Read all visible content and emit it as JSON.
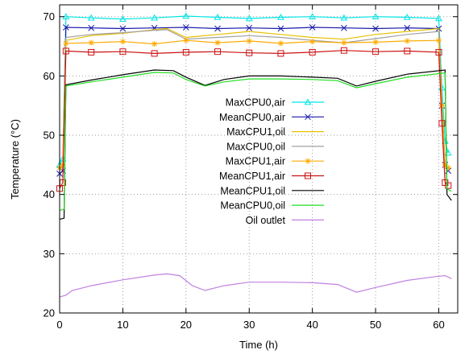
{
  "chart_data": {
    "type": "line",
    "title": "",
    "xlabel": "Time (h)",
    "ylabel": "Temperature (°C)",
    "xlim": [
      0,
      63
    ],
    "ylim": [
      20,
      72
    ],
    "xticks": [
      0,
      10,
      20,
      30,
      40,
      50,
      60
    ],
    "yticks": [
      20,
      30,
      40,
      50,
      60,
      70
    ],
    "grid": true,
    "legend_position": "center",
    "series": [
      {
        "name": "MaxCPU0,air",
        "color": "#00e5e5",
        "marker": "triangle",
        "points": [
          [
            0,
            45
          ],
          [
            0.5,
            46
          ],
          [
            1,
            70
          ],
          [
            5,
            69.8
          ],
          [
            10,
            69.6
          ],
          [
            15,
            69.8
          ],
          [
            20,
            70.1
          ],
          [
            25,
            69.9
          ],
          [
            30,
            69.7
          ],
          [
            35,
            69.9
          ],
          [
            40,
            70.0
          ],
          [
            45,
            69.8
          ],
          [
            50,
            70.0
          ],
          [
            55,
            69.9
          ],
          [
            60,
            69.7
          ],
          [
            60.5,
            58
          ],
          [
            61,
            49
          ],
          [
            61.5,
            47
          ]
        ]
      },
      {
        "name": "MeanCPU0,air",
        "color": "#1a1aaa",
        "marker": "x",
        "points": [
          [
            0,
            43.5
          ],
          [
            0.5,
            44
          ],
          [
            1,
            68.2
          ],
          [
            5,
            68.1
          ],
          [
            10,
            68.0
          ],
          [
            15,
            68.1
          ],
          [
            20,
            68.2
          ],
          [
            25,
            68.0
          ],
          [
            30,
            68.1
          ],
          [
            35,
            68.0
          ],
          [
            40,
            68.2
          ],
          [
            45,
            68.1
          ],
          [
            50,
            68.0
          ],
          [
            55,
            68.1
          ],
          [
            60,
            68.0
          ],
          [
            60.5,
            55
          ],
          [
            61,
            45
          ],
          [
            61.5,
            44
          ]
        ]
      },
      {
        "name": "MaxCPU1,oil",
        "color": "#e8c000",
        "marker": "none",
        "points": [
          [
            0,
            44
          ],
          [
            0.5,
            45
          ],
          [
            1,
            66
          ],
          [
            5,
            66.8
          ],
          [
            10,
            67.2
          ],
          [
            15,
            67.8
          ],
          [
            17,
            68
          ],
          [
            20,
            66.5
          ],
          [
            25,
            67
          ],
          [
            30,
            67.5
          ],
          [
            35,
            67
          ],
          [
            40,
            66.5
          ],
          [
            45,
            66.2
          ],
          [
            50,
            67
          ],
          [
            55,
            67.5
          ],
          [
            60,
            68
          ],
          [
            60.5,
            55
          ],
          [
            61,
            45
          ],
          [
            61.5,
            44
          ]
        ]
      },
      {
        "name": "MaxCPU0,oil",
        "color": "#a0a0a0",
        "marker": "none",
        "points": [
          [
            0,
            44
          ],
          [
            0.5,
            45
          ],
          [
            1,
            66.5
          ],
          [
            5,
            67
          ],
          [
            10,
            67.3
          ],
          [
            15,
            67.7
          ],
          [
            17,
            67.8
          ],
          [
            20,
            66.2
          ],
          [
            25,
            66.5
          ],
          [
            30,
            66.8
          ],
          [
            35,
            66.5
          ],
          [
            40,
            66
          ],
          [
            45,
            65.6
          ],
          [
            50,
            66.3
          ],
          [
            55,
            67
          ],
          [
            60,
            67.5
          ],
          [
            60.5,
            55
          ],
          [
            61,
            45
          ],
          [
            61.5,
            44
          ]
        ]
      },
      {
        "name": "MaxCPU1,air",
        "color": "#ffaa00",
        "marker": "star",
        "points": [
          [
            0,
            44.5
          ],
          [
            0.5,
            45
          ],
          [
            1,
            65.5
          ],
          [
            5,
            65.6
          ],
          [
            10,
            65.8
          ],
          [
            15,
            65.4
          ],
          [
            20,
            66
          ],
          [
            25,
            65.6
          ],
          [
            30,
            65.9
          ],
          [
            35,
            65.5
          ],
          [
            40,
            65.8
          ],
          [
            45,
            65.6
          ],
          [
            50,
            65.7
          ],
          [
            55,
            65.9
          ],
          [
            60,
            66
          ],
          [
            60.5,
            55
          ],
          [
            61,
            45
          ],
          [
            61.5,
            44.5
          ]
        ]
      },
      {
        "name": "MeanCPU1,air",
        "color": "#cc1111",
        "marker": "square",
        "points": [
          [
            0,
            41
          ],
          [
            0.5,
            42
          ],
          [
            1,
            64.2
          ],
          [
            5,
            64.0
          ],
          [
            10,
            64.1
          ],
          [
            15,
            63.8
          ],
          [
            20,
            64.0
          ],
          [
            25,
            64.1
          ],
          [
            30,
            63.9
          ],
          [
            35,
            63.8
          ],
          [
            40,
            64.0
          ],
          [
            45,
            64.3
          ],
          [
            50,
            64.1
          ],
          [
            55,
            64.2
          ],
          [
            60,
            64.0
          ],
          [
            60.5,
            52
          ],
          [
            61,
            42
          ],
          [
            61.5,
            41.5
          ]
        ]
      },
      {
        "name": "MeanCPU1,oil",
        "color": "#000000",
        "marker": "none",
        "points": [
          [
            0,
            35.8
          ],
          [
            0.7,
            36
          ],
          [
            1,
            58.5
          ],
          [
            5,
            59.3
          ],
          [
            10,
            60.2
          ],
          [
            15,
            61
          ],
          [
            18,
            60.9
          ],
          [
            20,
            59.8
          ],
          [
            23,
            58.4
          ],
          [
            26,
            59.4
          ],
          [
            30,
            60
          ],
          [
            35,
            60
          ],
          [
            40,
            59.8
          ],
          [
            44,
            59.6
          ],
          [
            47,
            58.3
          ],
          [
            50,
            59.1
          ],
          [
            55,
            60.3
          ],
          [
            61,
            61
          ],
          [
            61.3,
            40
          ],
          [
            62,
            39
          ]
        ]
      },
      {
        "name": "MeanCPU0,oil",
        "color": "#22dd22",
        "marker": "none",
        "points": [
          [
            0,
            37.3
          ],
          [
            0.7,
            37.5
          ],
          [
            1,
            58.3
          ],
          [
            5,
            59
          ],
          [
            10,
            59.8
          ],
          [
            15,
            60.6
          ],
          [
            18,
            60.5
          ],
          [
            20,
            59.4
          ],
          [
            23,
            58.3
          ],
          [
            26,
            59
          ],
          [
            30,
            59.5
          ],
          [
            35,
            59.5
          ],
          [
            40,
            59.4
          ],
          [
            44,
            59.2
          ],
          [
            47,
            58
          ],
          [
            50,
            58.7
          ],
          [
            55,
            59.8
          ],
          [
            61,
            60.5
          ],
          [
            61.3,
            41
          ],
          [
            62,
            40.5
          ]
        ]
      },
      {
        "name": "Oil outlet",
        "color": "#c080e0",
        "marker": "none",
        "points": [
          [
            0,
            22.7
          ],
          [
            1,
            23
          ],
          [
            2,
            23.8
          ],
          [
            5,
            24.6
          ],
          [
            10,
            25.6
          ],
          [
            15,
            26.4
          ],
          [
            17,
            26.6
          ],
          [
            19,
            26.3
          ],
          [
            21,
            24.6
          ],
          [
            23,
            23.8
          ],
          [
            26,
            24.6
          ],
          [
            30,
            25.2
          ],
          [
            35,
            25.2
          ],
          [
            40,
            25.1
          ],
          [
            44,
            24.8
          ],
          [
            47,
            23.5
          ],
          [
            50,
            24.3
          ],
          [
            55,
            25.5
          ],
          [
            60,
            26.2
          ],
          [
            61,
            26.3
          ],
          [
            62,
            25.8
          ]
        ]
      }
    ]
  }
}
